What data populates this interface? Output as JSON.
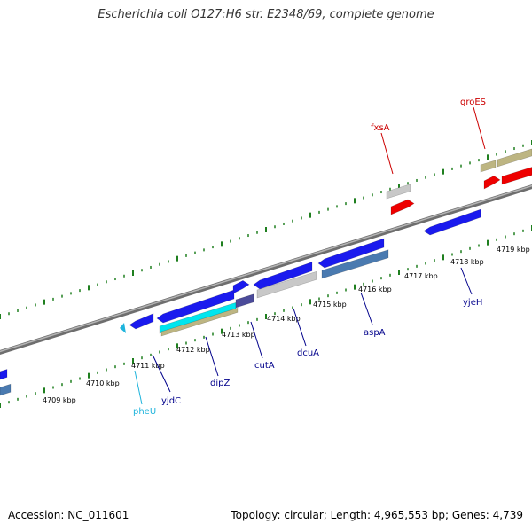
{
  "title": "Escherichia coli O127:H6 str. E2348/69, complete genome",
  "footer": {
    "accession": "Accession: NC_011601",
    "summary": "Topology: circular; Length: 4,965,553 bp; Genes: 4,739"
  },
  "colors": {
    "backbone": "#808080",
    "ticks": "#1f7f1f",
    "forward_gene": "#1a1aee",
    "highlight_red": "#ee0000",
    "gray_feature": "#c8c8c8",
    "tan_feature": "#bdb582",
    "cyan_feature": "#00e5ee",
    "steel_feature": "#4a7ab0",
    "label_blue": "#00008b",
    "label_red": "#cc0000",
    "label_cyan": "#1fb4dc"
  },
  "scale_labels": [
    "4709 kbp",
    "4710 kbp",
    "4711 kbp",
    "4712 kbp",
    "4713 kbp",
    "4714 kbp",
    "4715 kbp",
    "4716 kbp",
    "4717 kbp",
    "4718 kbp",
    "4719 kbp"
  ],
  "genes": [
    {
      "name": "pheU",
      "color": "#1fb4dc"
    },
    {
      "name": "yjdC",
      "color": "#00008b"
    },
    {
      "name": "dipZ",
      "color": "#00008b"
    },
    {
      "name": "cutA",
      "color": "#00008b"
    },
    {
      "name": "dcuA",
      "color": "#00008b"
    },
    {
      "name": "aspA",
      "color": "#00008b"
    },
    {
      "name": "yjeH",
      "color": "#00008b"
    },
    {
      "name": "fxsA",
      "color": "#cc0000"
    },
    {
      "name": "groES",
      "color": "#cc0000"
    }
  ]
}
